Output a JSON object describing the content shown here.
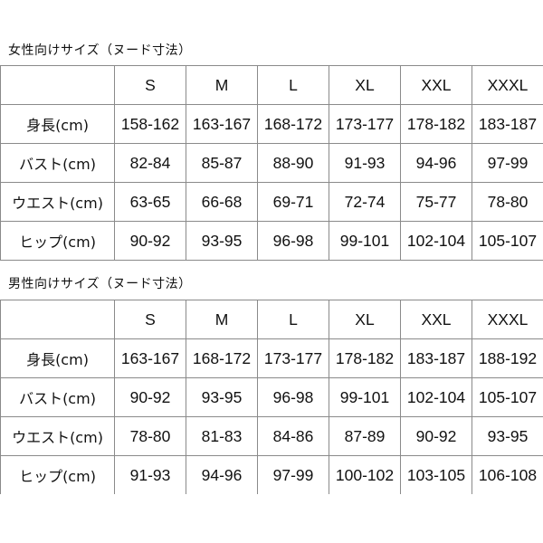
{
  "sizes": [
    "S",
    "M",
    "L",
    "XL",
    "XXL",
    "XXXL"
  ],
  "tables": [
    {
      "title": "女性向けサイズ（ヌード寸法）",
      "rows": [
        {
          "label": "身長(cm)",
          "values": [
            "158-162",
            "163-167",
            "168-172",
            "173-177",
            "178-182",
            "183-187"
          ]
        },
        {
          "label": "バスト(cm)",
          "values": [
            "82-84",
            "85-87",
            "88-90",
            "91-93",
            "94-96",
            "97-99"
          ]
        },
        {
          "label": "ウエスト(cm)",
          "values": [
            "63-65",
            "66-68",
            "69-71",
            "72-74",
            "75-77",
            "78-80"
          ]
        },
        {
          "label": "ヒップ(cm)",
          "values": [
            "90-92",
            "93-95",
            "96-98",
            "99-101",
            "102-104",
            "105-107"
          ]
        }
      ]
    },
    {
      "title": "男性向けサイズ（ヌード寸法）",
      "rows": [
        {
          "label": "身長(cm)",
          "values": [
            "163-167",
            "168-172",
            "173-177",
            "178-182",
            "183-187",
            "188-192"
          ]
        },
        {
          "label": "バスト(cm)",
          "values": [
            "90-92",
            "93-95",
            "96-98",
            "99-101",
            "102-104",
            "105-107"
          ]
        },
        {
          "label": "ウエスト(cm)",
          "values": [
            "78-80",
            "81-83",
            "84-86",
            "87-89",
            "90-92",
            "93-95"
          ]
        },
        {
          "label": "ヒップ(cm)",
          "values": [
            "91-93",
            "94-96",
            "97-99",
            "100-102",
            "103-105",
            "106-108"
          ]
        }
      ]
    }
  ]
}
